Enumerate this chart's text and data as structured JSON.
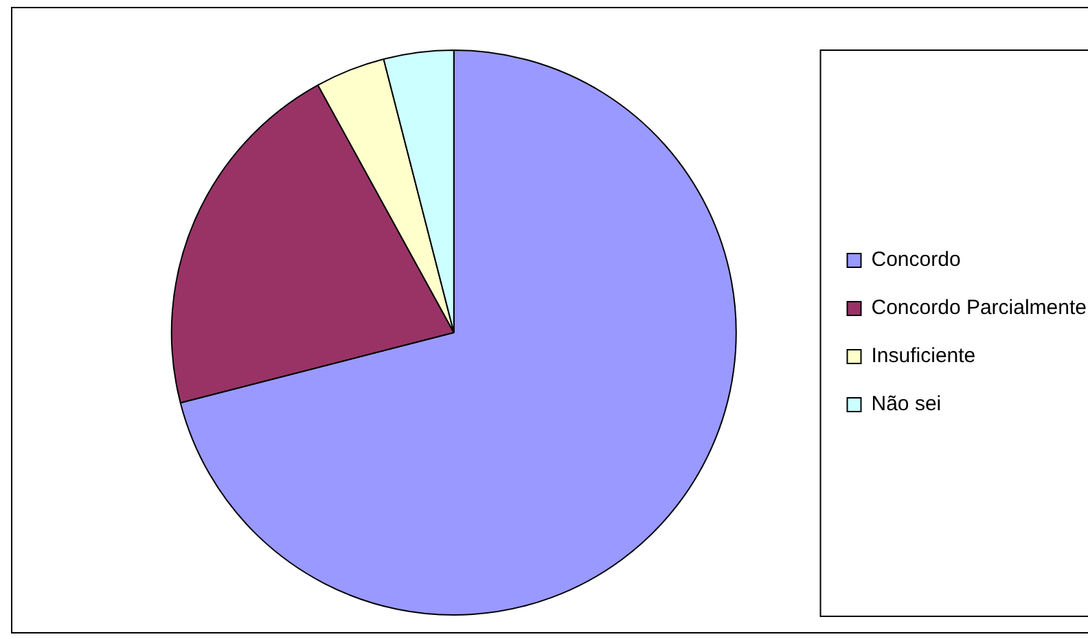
{
  "chart_data": {
    "type": "pie",
    "categories": [
      "Concordo",
      "Concordo Parcialmente",
      "Insuficiente",
      "Não sei"
    ],
    "values": [
      71,
      21,
      4,
      4
    ],
    "colors": [
      "#9999ff",
      "#993366",
      "#ffffcc",
      "#ccffff"
    ],
    "legend": "right"
  }
}
